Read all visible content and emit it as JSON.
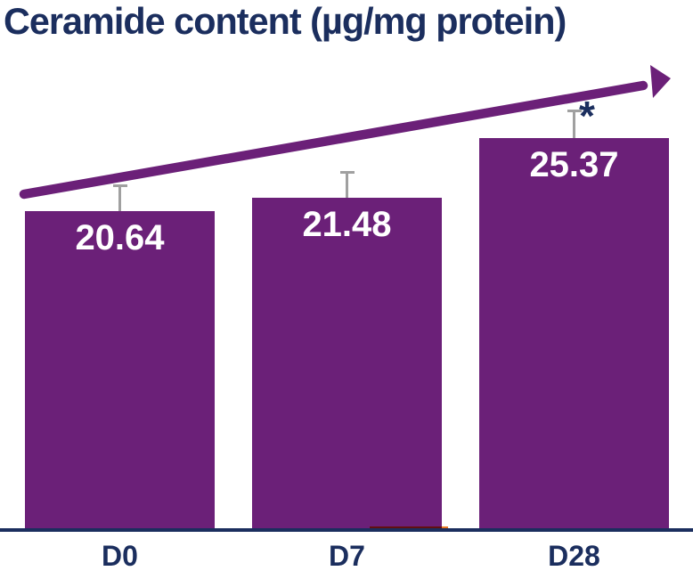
{
  "title": "Ceramide content (µg/mg protein)",
  "colors": {
    "bar": "#6B2078",
    "arrow": "#6B2078",
    "navy_text": "#1B2E5E",
    "error_bar": "#A0A0A0",
    "value_text": "#FFFFFF",
    "accent_orange": "#E87722",
    "background": "#FFFFFF"
  },
  "chart_data": {
    "type": "bar",
    "title": "Ceramide content (µg/mg protein)",
    "categories": [
      "D0",
      "D7",
      "D28"
    ],
    "values": [
      20.64,
      21.48,
      25.37
    ],
    "value_labels": [
      "20.64",
      "21.48",
      "25.37"
    ],
    "error_bars": [
      1.74,
      1.74,
      1.85
    ],
    "xlabel": "",
    "ylabel": "",
    "ylim": [
      0,
      32
    ],
    "grid": false,
    "legend": "none",
    "axes": "x baseline only",
    "trend_arrow": "upward diagonal arrow from lower-left to upper-right",
    "annotations": [
      {
        "category": "D28",
        "symbol": "*"
      }
    ]
  }
}
